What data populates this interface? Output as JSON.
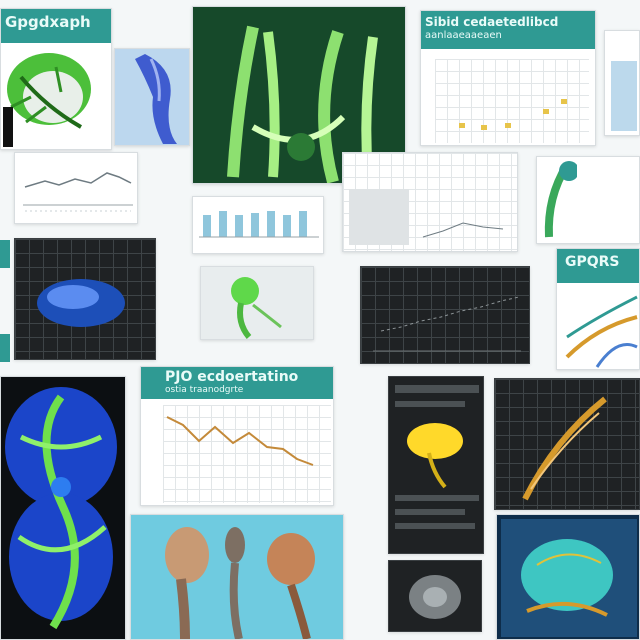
{
  "panels": {
    "top_left_title": "Gpgdxaph",
    "top_center_title": "Sibid cedaetedlibcd",
    "top_center_subtitle": "aanlaaeaaeaen",
    "right_mid_title": "GPQRS",
    "middle_title": "PJO ecdoertatino",
    "middle_subtitle": "ostia traanodgrte"
  },
  "colors": {
    "teal": "#2f9a93",
    "leaf_green": "#4cbf3a",
    "deep_blue": "#1d4fb8",
    "amber": "#d69a2c",
    "dark_panel": "#1f2224"
  },
  "icons": [
    "leaf-structure-icon",
    "organ-specimen-icon",
    "brain-section-icon",
    "yellow-specimen-icon"
  ]
}
